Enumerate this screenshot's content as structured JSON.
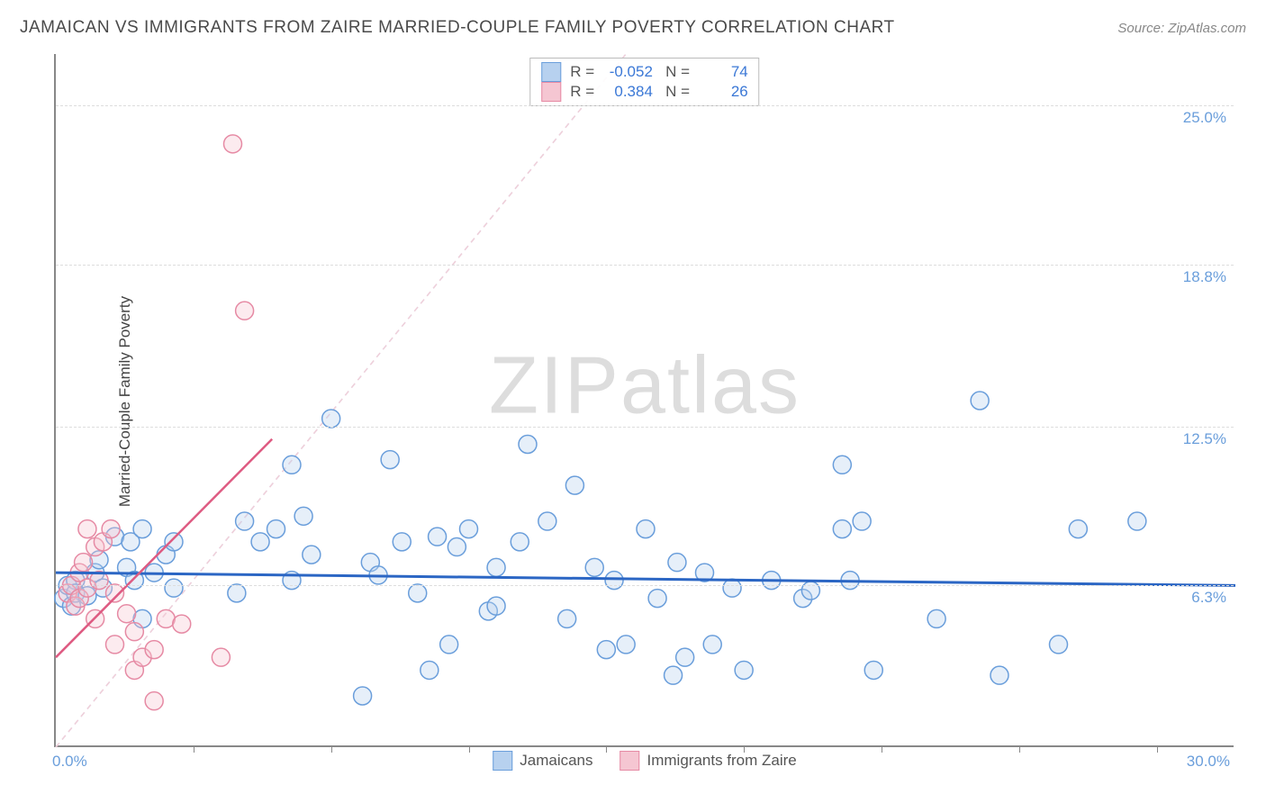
{
  "header": {
    "title": "JAMAICAN VS IMMIGRANTS FROM ZAIRE MARRIED-COUPLE FAMILY POVERTY CORRELATION CHART",
    "source_prefix": "Source: ",
    "source_name": "ZipAtlas.com"
  },
  "axes": {
    "y_title": "Married-Couple Family Poverty",
    "x_min": 0.0,
    "x_max": 30.0,
    "y_min": 0.0,
    "y_max": 27.0,
    "x_labels": [
      {
        "val": 0.0,
        "text": "0.0%"
      },
      {
        "val": 30.0,
        "text": "30.0%"
      }
    ],
    "x_ticks": [
      3.5,
      7.0,
      10.5,
      14.0,
      17.5,
      21.0,
      24.5,
      28.0
    ],
    "y_gridlines": [
      {
        "val": 6.3,
        "text": "6.3%"
      },
      {
        "val": 12.5,
        "text": "12.5%"
      },
      {
        "val": 18.8,
        "text": "18.8%"
      },
      {
        "val": 25.0,
        "text": "25.0%"
      }
    ]
  },
  "watermark": {
    "part1": "ZIP",
    "part2": "atlas"
  },
  "legend_top": {
    "series": [
      {
        "swatch_fill": "#b7d1ef",
        "swatch_border": "#6a9edb",
        "r": "-0.052",
        "n": "74"
      },
      {
        "swatch_fill": "#f5c6d2",
        "swatch_border": "#e68aa4",
        "r": "0.384",
        "n": "26"
      }
    ],
    "r_label": "R =",
    "n_label": "N ="
  },
  "legend_bottom": {
    "items": [
      {
        "swatch_fill": "#b7d1ef",
        "swatch_border": "#6a9edb",
        "label": "Jamaicans"
      },
      {
        "swatch_fill": "#f5c6d2",
        "swatch_border": "#e68aa4",
        "label": "Immigrants from Zaire"
      }
    ]
  },
  "chart": {
    "type": "scatter",
    "marker_radius": 10,
    "marker_fill_opacity": 0.35,
    "marker_stroke_width": 1.5,
    "series": [
      {
        "name": "Jamaicans",
        "color_fill": "#b7d1ef",
        "color_stroke": "#6a9edb",
        "trend": {
          "x1": 0.0,
          "y1": 6.8,
          "x2": 30.0,
          "y2": 6.3,
          "color": "#2b66c4",
          "width": 3,
          "dash": "none"
        },
        "identity": {
          "x1": 0.0,
          "y1": 0.0,
          "x2": 14.5,
          "y2": 27.0,
          "color": "#c9dcf2",
          "width": 1.5,
          "dash": "6,5"
        },
        "points": [
          [
            0.2,
            5.8
          ],
          [
            0.3,
            6.3
          ],
          [
            0.4,
            5.5
          ],
          [
            0.5,
            6.5
          ],
          [
            0.5,
            6.0
          ],
          [
            0.8,
            5.9
          ],
          [
            1.0,
            6.8
          ],
          [
            1.1,
            7.3
          ],
          [
            1.2,
            6.2
          ],
          [
            1.5,
            8.2
          ],
          [
            1.8,
            7.0
          ],
          [
            1.9,
            8.0
          ],
          [
            2.0,
            6.5
          ],
          [
            2.2,
            5.0
          ],
          [
            2.2,
            8.5
          ],
          [
            2.5,
            6.8
          ],
          [
            2.8,
            7.5
          ],
          [
            3.0,
            6.2
          ],
          [
            3.0,
            8.0
          ],
          [
            4.6,
            6.0
          ],
          [
            4.8,
            8.8
          ],
          [
            5.2,
            8.0
          ],
          [
            5.6,
            8.5
          ],
          [
            6.0,
            6.5
          ],
          [
            6.0,
            11.0
          ],
          [
            6.3,
            9.0
          ],
          [
            6.5,
            7.5
          ],
          [
            7.0,
            12.8
          ],
          [
            7.8,
            2.0
          ],
          [
            8.0,
            7.2
          ],
          [
            8.2,
            6.7
          ],
          [
            8.5,
            11.2
          ],
          [
            8.8,
            8.0
          ],
          [
            9.2,
            6.0
          ],
          [
            9.5,
            3.0
          ],
          [
            9.7,
            8.2
          ],
          [
            10.0,
            4.0
          ],
          [
            10.2,
            7.8
          ],
          [
            10.5,
            8.5
          ],
          [
            11.0,
            5.3
          ],
          [
            11.2,
            5.5
          ],
          [
            11.2,
            7.0
          ],
          [
            11.8,
            8.0
          ],
          [
            12.0,
            11.8
          ],
          [
            12.5,
            8.8
          ],
          [
            13.0,
            5.0
          ],
          [
            13.2,
            10.2
          ],
          [
            13.7,
            7.0
          ],
          [
            14.0,
            3.8
          ],
          [
            14.2,
            6.5
          ],
          [
            14.5,
            4.0
          ],
          [
            15.0,
            8.5
          ],
          [
            15.3,
            5.8
          ],
          [
            15.7,
            2.8
          ],
          [
            15.8,
            7.2
          ],
          [
            16.0,
            3.5
          ],
          [
            16.5,
            6.8
          ],
          [
            16.7,
            4.0
          ],
          [
            17.2,
            6.2
          ],
          [
            17.5,
            3.0
          ],
          [
            18.2,
            6.5
          ],
          [
            19.0,
            5.8
          ],
          [
            19.2,
            6.1
          ],
          [
            20.0,
            8.5
          ],
          [
            20.0,
            11.0
          ],
          [
            20.2,
            6.5
          ],
          [
            20.5,
            8.8
          ],
          [
            20.8,
            3.0
          ],
          [
            22.4,
            5.0
          ],
          [
            23.5,
            13.5
          ],
          [
            24.0,
            2.8
          ],
          [
            25.5,
            4.0
          ],
          [
            26.0,
            8.5
          ],
          [
            27.5,
            8.8
          ]
        ]
      },
      {
        "name": "Immigrants from Zaire",
        "color_fill": "#f5c6d2",
        "color_stroke": "#e68aa4",
        "trend": {
          "x1": 0.0,
          "y1": 3.5,
          "x2": 5.5,
          "y2": 12.0,
          "color": "#de5b82",
          "width": 2.5,
          "dash": "none"
        },
        "identity": {
          "x1": 0.0,
          "y1": 0.0,
          "x2": 14.5,
          "y2": 27.0,
          "color": "#f1cfd9",
          "width": 1.5,
          "dash": "6,5"
        },
        "points": [
          [
            0.3,
            6.0
          ],
          [
            0.4,
            6.3
          ],
          [
            0.5,
            5.5
          ],
          [
            0.6,
            6.8
          ],
          [
            0.6,
            5.8
          ],
          [
            0.7,
            7.2
          ],
          [
            0.8,
            6.2
          ],
          [
            0.8,
            8.5
          ],
          [
            1.0,
            7.8
          ],
          [
            1.0,
            5.0
          ],
          [
            1.1,
            6.5
          ],
          [
            1.2,
            8.0
          ],
          [
            1.4,
            8.5
          ],
          [
            1.5,
            6.0
          ],
          [
            1.5,
            4.0
          ],
          [
            1.8,
            5.2
          ],
          [
            2.0,
            4.5
          ],
          [
            2.0,
            3.0
          ],
          [
            2.2,
            3.5
          ],
          [
            2.5,
            1.8
          ],
          [
            2.5,
            3.8
          ],
          [
            2.8,
            5.0
          ],
          [
            3.2,
            4.8
          ],
          [
            4.2,
            3.5
          ],
          [
            4.5,
            23.5
          ],
          [
            4.8,
            17.0
          ]
        ]
      }
    ]
  }
}
